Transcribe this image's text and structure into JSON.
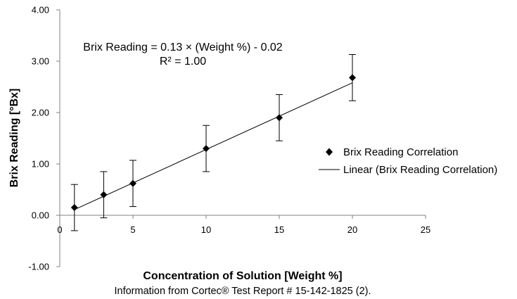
{
  "chart_data": {
    "type": "scatter",
    "xlabel": "Concentration of Solution [Weight %]",
    "ylabel": "Brix Reading [°Bx]",
    "caption": "Information from Cortec® Test Report # 15-142-1825 (2).",
    "xlim": [
      0,
      25
    ],
    "ylim": [
      -1,
      4
    ],
    "x_ticks": [
      "0",
      "5",
      "10",
      "15",
      "20",
      "25"
    ],
    "y_ticks": [
      "-1.00",
      "0.00",
      "1.00",
      "2.00",
      "3.00",
      "4.00"
    ],
    "series": [
      {
        "name": "Brix Reading Correlation",
        "marker": "diamond",
        "x": [
          1,
          3,
          5,
          10,
          15,
          20
        ],
        "y": [
          0.15,
          0.4,
          0.62,
          1.3,
          1.9,
          2.68
        ],
        "error": [
          0.45,
          0.45,
          0.45,
          0.45,
          0.45,
          0.45
        ]
      }
    ],
    "trendline": {
      "name": "Linear (Brix Reading Correlation)",
      "slope": 0.13,
      "intercept": -0.02,
      "x_range": [
        1,
        20
      ]
    },
    "annotations": {
      "equation": "Brix Reading = 0.13 × (Weight %) - 0.02",
      "r_squared": "R² = 1.00"
    },
    "legend": {
      "position": "right",
      "entries": [
        "Brix Reading Correlation",
        "Linear (Brix Reading Correlation)"
      ]
    },
    "grid": false,
    "colors": {
      "marker": "#000000",
      "line": "#000000",
      "axis": "#808080"
    }
  }
}
